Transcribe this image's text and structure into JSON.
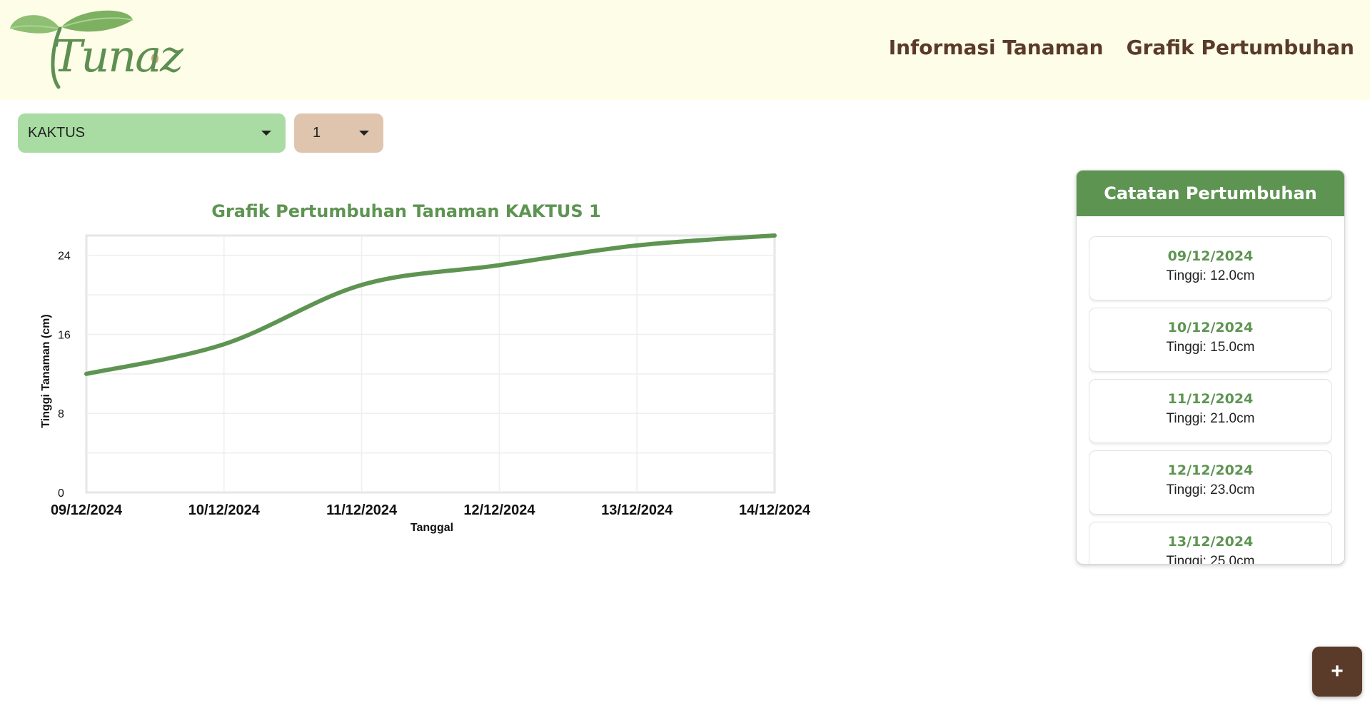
{
  "header": {
    "logo_text": "Tunaz",
    "nav": [
      "Informasi Tanaman",
      "Grafik Pertumbuhan"
    ]
  },
  "controls": {
    "plant_select": "KAKTUS",
    "number_select": "1"
  },
  "colors": {
    "brand_green": "#5e9452",
    "brand_brown": "#5a3a28",
    "header_bg": "#fefee8",
    "select_green": "#a9dca3",
    "select_tan": "#dfc5ad"
  },
  "chart_data": {
    "type": "line",
    "title": "Grafik Pertumbuhan Tanaman KAKTUS 1",
    "xlabel": "Tanggal",
    "ylabel": "Tinggi Tanaman (cm)",
    "categories": [
      "09/12/2024",
      "10/12/2024",
      "11/12/2024",
      "12/12/2024",
      "13/12/2024",
      "14/12/2024"
    ],
    "series": [
      {
        "values": [
          12.0,
          15.0,
          21.0,
          23.0,
          25.0,
          26.0
        ]
      }
    ],
    "ylim": [
      0,
      26
    ],
    "yticks": [
      0,
      8,
      16,
      24
    ],
    "grid": true,
    "line_color": "#5e9452"
  },
  "records_panel": {
    "title": "Catatan Pertumbuhan",
    "items": [
      {
        "date": "09/12/2024",
        "height": "Tinggi: 12.0cm"
      },
      {
        "date": "10/12/2024",
        "height": "Tinggi: 15.0cm"
      },
      {
        "date": "11/12/2024",
        "height": "Tinggi: 21.0cm"
      },
      {
        "date": "12/12/2024",
        "height": "Tinggi: 23.0cm"
      },
      {
        "date": "13/12/2024",
        "height": "Tinggi: 25.0cm"
      }
    ]
  },
  "fab": {
    "label": "+"
  }
}
